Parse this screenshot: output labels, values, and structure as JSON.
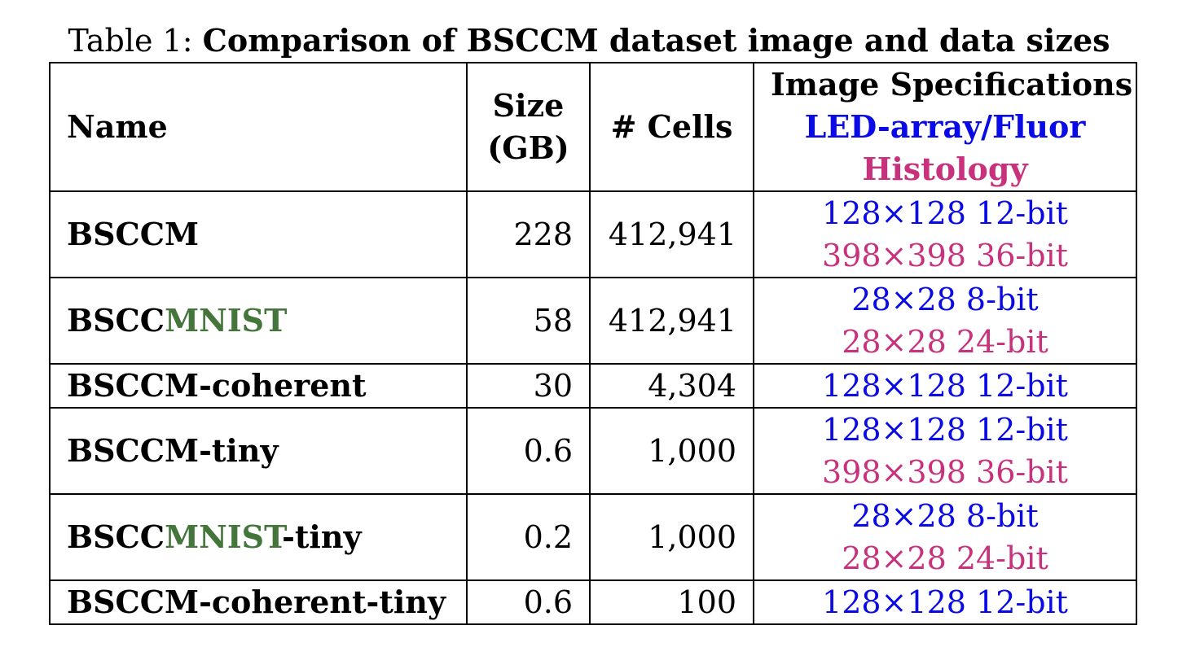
{
  "caption": {
    "label": "Table 1:",
    "title": "Comparison of BSCCM dataset image and data sizes"
  },
  "colors": {
    "led": "#0a0ae6",
    "histology": "#c8327c",
    "mnist": "#44763b"
  },
  "headers": {
    "name": "Name",
    "size_line1": "Size",
    "size_line2": "(GB)",
    "cells": "# Cells",
    "spec_title": "Image Specifications",
    "spec_led": "LED-array/Fluor",
    "spec_hist": "Histology"
  },
  "rows": [
    {
      "name_prefix": "BSCCM",
      "name_mnist": "",
      "name_suffix": "",
      "size": "228",
      "cells": "412,941",
      "led": "128×128 12-bit",
      "hist": "398×398 36-bit"
    },
    {
      "name_prefix": "BSCC",
      "name_mnist": "MNIST",
      "name_suffix": "",
      "size": "58",
      "cells": "412,941",
      "led": "28×28 8-bit",
      "hist": "28×28 24-bit"
    },
    {
      "name_prefix": "BSCCM-coherent",
      "name_mnist": "",
      "name_suffix": "",
      "size": "30",
      "cells": "4,304",
      "led": "128×128 12-bit",
      "hist": ""
    },
    {
      "name_prefix": "BSCCM-tiny",
      "name_mnist": "",
      "name_suffix": "",
      "size": "0.6",
      "cells": "1,000",
      "led": "128×128 12-bit",
      "hist": "398×398 36-bit"
    },
    {
      "name_prefix": "BSCC",
      "name_mnist": "MNIST",
      "name_suffix": "-tiny",
      "size": "0.2",
      "cells": "1,000",
      "led": "28×28 8-bit",
      "hist": "28×28 24-bit"
    },
    {
      "name_prefix": "BSCCM-coherent-tiny",
      "name_mnist": "",
      "name_suffix": "",
      "size": "0.6",
      "cells": "100",
      "led": "128×128 12-bit",
      "hist": ""
    }
  ]
}
